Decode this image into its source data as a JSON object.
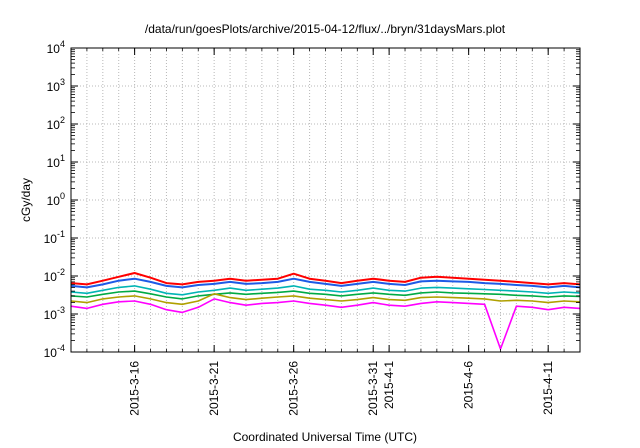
{
  "chart_data": {
    "type": "line",
    "title": "/data/run/goesPlots/archive/2015-04-12/flux/../bryn/31daysMars.plot",
    "xlabel": "Coordinated Universal Time (UTC)",
    "ylabel": "cGy/day",
    "yscale": "log",
    "ylim": [
      0.0001,
      10000
    ],
    "xlim": [
      "2015-03-12",
      "2015-04-13"
    ],
    "grid": true,
    "y_ticks": [
      {
        "base": "10",
        "exp": "-4"
      },
      {
        "base": "10",
        "exp": "-3"
      },
      {
        "base": "10",
        "exp": "-2"
      },
      {
        "base": "10",
        "exp": "-1"
      },
      {
        "base": "10",
        "exp": "0"
      },
      {
        "base": "10",
        "exp": "1"
      },
      {
        "base": "10",
        "exp": "2"
      },
      {
        "base": "10",
        "exp": "3"
      },
      {
        "base": "10",
        "exp": "4"
      }
    ],
    "x_ticks": [
      {
        "date": "2015-03-16",
        "label": "2015-3-16"
      },
      {
        "date": "2015-03-21",
        "label": "2015-3-21"
      },
      {
        "date": "2015-03-26",
        "label": "2015-3-26"
      },
      {
        "date": "2015-03-31",
        "label": "2015-3-31"
      },
      {
        "date": "2015-04-01",
        "label": "2015-4-1"
      },
      {
        "date": "2015-04-06",
        "label": "2015-4-6"
      },
      {
        "date": "2015-04-11",
        "label": "2015-4-11"
      }
    ],
    "x": [
      "2015-03-12",
      "2015-03-13",
      "2015-03-14",
      "2015-03-15",
      "2015-03-16",
      "2015-03-17",
      "2015-03-18",
      "2015-03-19",
      "2015-03-20",
      "2015-03-21",
      "2015-03-22",
      "2015-03-23",
      "2015-03-24",
      "2015-03-25",
      "2015-03-26",
      "2015-03-27",
      "2015-03-28",
      "2015-03-29",
      "2015-03-30",
      "2015-03-31",
      "2015-04-01",
      "2015-04-02",
      "2015-04-03",
      "2015-04-04",
      "2015-04-05",
      "2015-04-06",
      "2015-04-07",
      "2015-04-08",
      "2015-04-09",
      "2015-04-10",
      "2015-04-11",
      "2015-04-12",
      "2015-04-13"
    ],
    "series": [
      {
        "color": "#ff0000",
        "values": [
          0.0065,
          0.006,
          0.0075,
          0.0095,
          0.012,
          0.009,
          0.0065,
          0.006,
          0.007,
          0.0075,
          0.0085,
          0.0075,
          0.008,
          0.0085,
          0.0115,
          0.0085,
          0.0075,
          0.0065,
          0.0075,
          0.0085,
          0.0075,
          0.007,
          0.009,
          0.0095,
          0.009,
          0.0085,
          0.008,
          0.0075,
          0.007,
          0.0065,
          0.006,
          0.0065,
          0.006
        ]
      },
      {
        "color": "#1e5ae6",
        "values": [
          0.0055,
          0.005,
          0.006,
          0.0075,
          0.0085,
          0.007,
          0.0055,
          0.005,
          0.0058,
          0.0062,
          0.007,
          0.0062,
          0.0065,
          0.007,
          0.0085,
          0.007,
          0.0062,
          0.0055,
          0.0062,
          0.007,
          0.0062,
          0.0058,
          0.0072,
          0.0075,
          0.0072,
          0.007,
          0.0065,
          0.0062,
          0.0058,
          0.0055,
          0.005,
          0.0055,
          0.005
        ]
      },
      {
        "color": "#00b4b4",
        "values": [
          0.0038,
          0.0035,
          0.0042,
          0.005,
          0.0055,
          0.0045,
          0.0035,
          0.0032,
          0.0038,
          0.0042,
          0.0048,
          0.0042,
          0.0045,
          0.0048,
          0.0055,
          0.0045,
          0.0042,
          0.0038,
          0.0042,
          0.0048,
          0.0042,
          0.004,
          0.0048,
          0.005,
          0.0048,
          0.0046,
          0.0044,
          0.0042,
          0.004,
          0.0038,
          0.0035,
          0.0038,
          0.0036
        ]
      },
      {
        "color": "#00aa44",
        "values": [
          0.003,
          0.0028,
          0.0033,
          0.0038,
          0.004,
          0.0034,
          0.0028,
          0.0025,
          0.003,
          0.0033,
          0.0036,
          0.0033,
          0.0035,
          0.0037,
          0.004,
          0.0035,
          0.0033,
          0.003,
          0.0033,
          0.0036,
          0.0033,
          0.0031,
          0.0036,
          0.0038,
          0.0036,
          0.0035,
          0.0034,
          0.0033,
          0.0031,
          0.003,
          0.0028,
          0.003,
          0.0029
        ]
      },
      {
        "color": "#b0a000",
        "values": [
          0.0022,
          0.002,
          0.0025,
          0.0028,
          0.003,
          0.0025,
          0.002,
          0.0018,
          0.0022,
          0.0034,
          0.0027,
          0.0024,
          0.0026,
          0.0028,
          0.003,
          0.0026,
          0.0024,
          0.0022,
          0.0024,
          0.0027,
          0.0024,
          0.0023,
          0.0027,
          0.0028,
          0.0027,
          0.0026,
          0.0025,
          0.0022,
          0.0023,
          0.0022,
          0.002,
          0.0022,
          0.0021
        ]
      },
      {
        "color": "#ff00ff",
        "values": [
          0.0016,
          0.0014,
          0.0018,
          0.0021,
          0.0022,
          0.0018,
          0.0013,
          0.0011,
          0.0015,
          0.0025,
          0.002,
          0.0017,
          0.0019,
          0.002,
          0.0022,
          0.0019,
          0.0017,
          0.0015,
          0.0017,
          0.002,
          0.0017,
          0.0016,
          0.0019,
          0.0021,
          0.002,
          0.0019,
          0.0018,
          0.00012,
          0.0016,
          0.0015,
          0.0013,
          0.0015,
          0.0014
        ]
      }
    ]
  }
}
